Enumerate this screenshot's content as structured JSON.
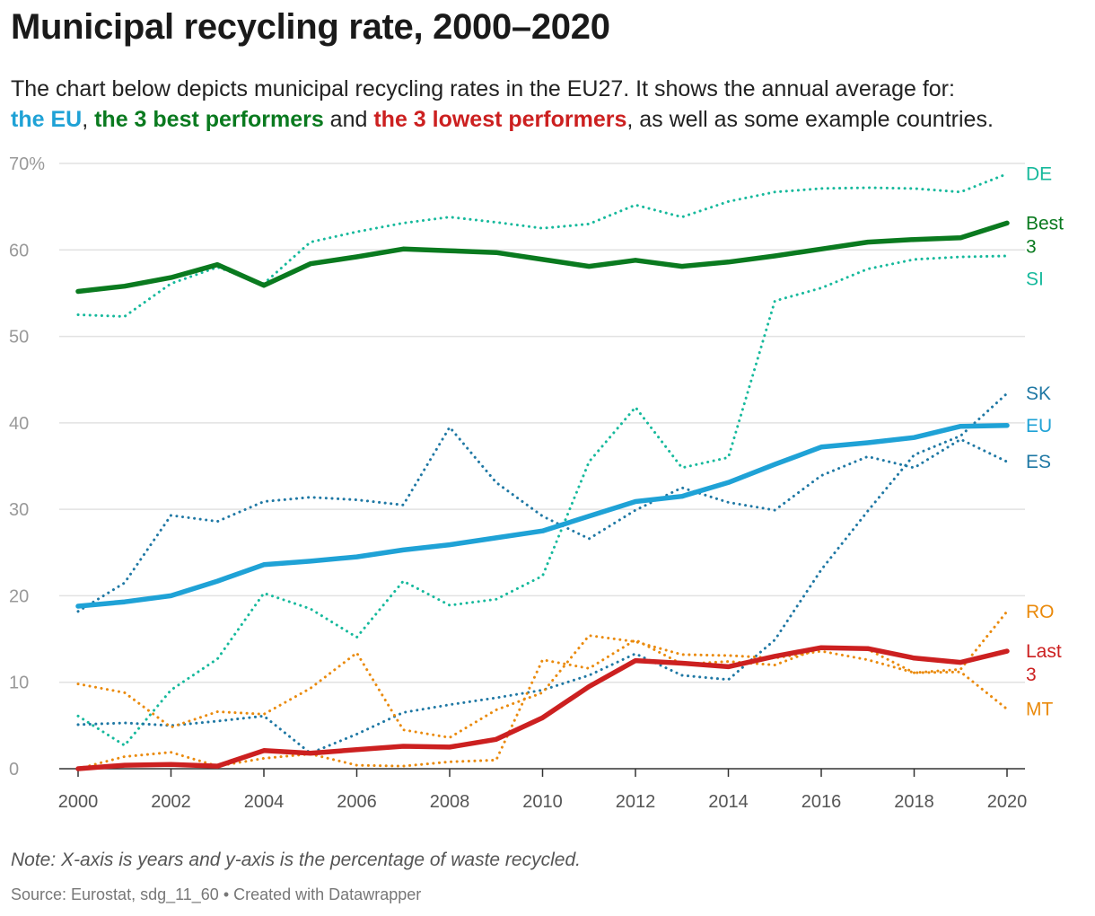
{
  "title": "Municipal recycling rate, 2000–2020",
  "subtitle": {
    "line1": "The chart below depicts municipal recycling rates in the EU27. It shows the annual average for:",
    "eu": "the EU",
    "sep1": ", ",
    "best": "the 3 best performers",
    "sep2": " and ",
    "lowest": "the 3 lowest performers",
    "tail": ", as well as some example countries."
  },
  "note": "Note: X-axis is years and y-axis is the percentage of waste recycled.",
  "source": "Source: Eurostat, sdg_11_60 • Created with Datawrapper",
  "colors": {
    "eu": "#1fa2d6",
    "best": "#0a7a1f",
    "lowest": "#cc2020",
    "teal": "#16b99c",
    "darkblue": "#1f78a4",
    "orange": "#ea8a0c",
    "grid": "#e2e2e2",
    "axis": "#333333"
  },
  "chart_data": {
    "type": "line",
    "x": [
      2000,
      2001,
      2002,
      2003,
      2004,
      2005,
      2006,
      2007,
      2008,
      2009,
      2010,
      2011,
      2012,
      2013,
      2014,
      2015,
      2016,
      2017,
      2018,
      2019,
      2020
    ],
    "xlim": [
      2000,
      2020
    ],
    "ylim": [
      0,
      70
    ],
    "xticks": [
      2000,
      2002,
      2004,
      2006,
      2008,
      2010,
      2012,
      2014,
      2016,
      2018,
      2020
    ],
    "yticks": [
      0,
      10,
      20,
      30,
      40,
      50,
      60,
      70
    ],
    "ytick_labels": [
      "0",
      "10",
      "20",
      "30",
      "40",
      "50",
      "60",
      "70%"
    ],
    "grid": "horizontal",
    "series": [
      {
        "name": "DE",
        "label": [
          "DE"
        ],
        "colorKey": "teal",
        "style": "dotted",
        "values": [
          52.5,
          52.3,
          56.1,
          58.0,
          56.1,
          60.9,
          62.1,
          63.1,
          63.8,
          63.2,
          62.5,
          63.0,
          65.2,
          63.8,
          65.6,
          66.7,
          67.1,
          67.2,
          67.1,
          66.7,
          68.8
        ]
      },
      {
        "name": "SI",
        "label": [
          "SI"
        ],
        "colorKey": "teal",
        "style": "dotted",
        "values": [
          6.1,
          2.7,
          9.1,
          12.7,
          20.3,
          18.5,
          15.2,
          21.7,
          18.9,
          19.6,
          22.3,
          35.5,
          41.8,
          34.8,
          36.0,
          54.1,
          55.6,
          57.8,
          58.9,
          59.2,
          59.3
        ]
      },
      {
        "name": "SK",
        "label": [
          "SK"
        ],
        "colorKey": "darkblue",
        "style": "dotted",
        "values": [
          5.1,
          5.3,
          5.0,
          5.5,
          6.1,
          1.8,
          4.0,
          6.5,
          7.4,
          8.2,
          9.1,
          10.8,
          13.3,
          10.8,
          10.3,
          14.9,
          23.0,
          29.8,
          36.3,
          38.5,
          43.4
        ]
      },
      {
        "name": "ES",
        "label": [
          "ES"
        ],
        "colorKey": "darkblue",
        "style": "dotted",
        "values": [
          18.2,
          21.5,
          29.3,
          28.6,
          30.9,
          31.4,
          31.1,
          30.5,
          39.5,
          33.1,
          29.2,
          26.6,
          29.9,
          32.5,
          30.8,
          29.9,
          33.9,
          36.1,
          34.8,
          38.1,
          35.5
        ]
      },
      {
        "name": "RO",
        "label": [
          "RO"
        ],
        "colorKey": "orange",
        "style": "dotted",
        "values": [
          0.0,
          1.4,
          1.9,
          0.3,
          1.2,
          1.7,
          0.4,
          0.3,
          0.8,
          1.0,
          12.6,
          11.6,
          14.9,
          12.1,
          12.4,
          12.0,
          14.0,
          13.8,
          11.1,
          11.5,
          18.2
        ]
      },
      {
        "name": "MT",
        "label": [
          "MT"
        ],
        "colorKey": "orange",
        "style": "dotted",
        "values": [
          9.8,
          8.8,
          4.8,
          6.6,
          6.3,
          9.3,
          13.4,
          4.5,
          3.6,
          6.8,
          8.8,
          15.4,
          14.7,
          13.2,
          13.1,
          12.8,
          13.6,
          12.6,
          11.1,
          11.2,
          6.9
        ]
      },
      {
        "name": "EU",
        "label": [
          "EU"
        ],
        "colorKey": "eu",
        "style": "solid",
        "values": [
          18.8,
          19.3,
          20.0,
          21.7,
          23.6,
          24.0,
          24.5,
          25.3,
          25.9,
          26.7,
          27.5,
          29.2,
          30.9,
          31.5,
          33.1,
          35.2,
          37.2,
          37.7,
          38.3,
          39.6,
          39.7
        ]
      },
      {
        "name": "Best 3",
        "label": [
          "Best",
          "3"
        ],
        "colorKey": "best",
        "style": "solid",
        "values": [
          55.2,
          55.8,
          56.8,
          58.3,
          55.9,
          58.4,
          59.2,
          60.1,
          59.9,
          59.7,
          58.9,
          58.1,
          58.8,
          58.1,
          58.6,
          59.3,
          60.1,
          60.9,
          61.2,
          61.4,
          63.1
        ]
      },
      {
        "name": "Last 3",
        "label": [
          "Last",
          "3"
        ],
        "colorKey": "lowest",
        "style": "solid",
        "values": [
          0.0,
          0.4,
          0.5,
          0.3,
          2.1,
          1.8,
          2.2,
          2.6,
          2.5,
          3.4,
          5.9,
          9.5,
          12.5,
          12.2,
          11.8,
          13.0,
          14.0,
          13.9,
          12.8,
          12.3,
          13.6
        ]
      }
    ]
  }
}
